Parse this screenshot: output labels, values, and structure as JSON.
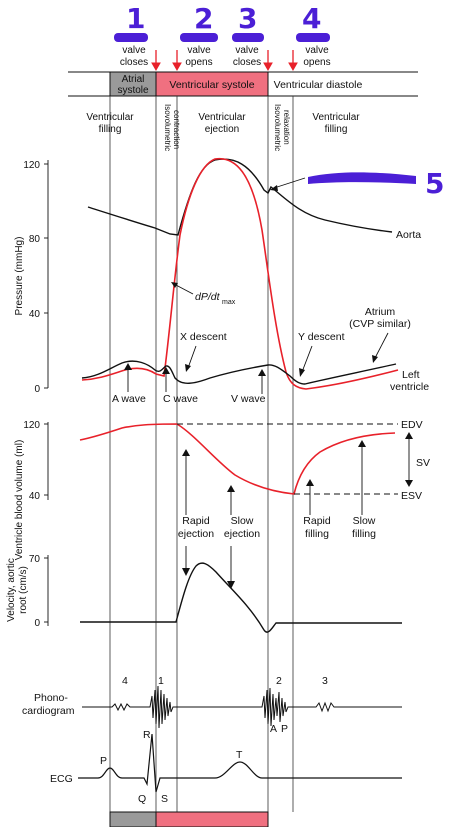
{
  "annotations": {
    "numbers": [
      "1",
      "2",
      "3",
      "4",
      "5"
    ],
    "ink_color": "#4b1fd6"
  },
  "valve_events": [
    {
      "line1": "valve",
      "line2": "closes"
    },
    {
      "line1": "valve",
      "line2": "opens"
    },
    {
      "line1": "valve",
      "line2": "closes"
    },
    {
      "line1": "valve",
      "line2": "opens"
    }
  ],
  "phase_bar": {
    "atrial": [
      "Atrial",
      "systole"
    ],
    "ventricular_systole": "Ventricular systole",
    "ventricular_diastole": "Ventricular diastole",
    "colors": {
      "atrial": "#9a9a9a",
      "systole": "#f07080"
    }
  },
  "sub_phases": {
    "filling_left": [
      "Ventricular",
      "filling"
    ],
    "isovolumetric_contraction": [
      "Isovolumetric",
      "contraction"
    ],
    "ejection": [
      "Ventricular",
      "ejection"
    ],
    "isovolumetric_relaxation": [
      "Isovolumetric",
      "relaxation"
    ],
    "filling_right": [
      "Ventricular",
      "filling"
    ]
  },
  "pressure_panel": {
    "ylabel": "Pressure (mmHg)",
    "ticks": [
      "120",
      "80",
      "40",
      "0"
    ],
    "labels": {
      "aorta": "Aorta",
      "dpdt": "dP/dt",
      "dpdt_sub": "max",
      "x_descent": "X descent",
      "y_descent": "Y descent",
      "atrium": [
        "Atrium",
        "(CVP similar)"
      ],
      "left_ventricle": [
        "Left",
        "ventricle"
      ],
      "a_wave": "A wave",
      "c_wave": "C wave",
      "v_wave": "V wave"
    }
  },
  "volume_panel": {
    "ylabel": "Ventricle blood volume (ml)",
    "ticks": [
      "120",
      "40"
    ],
    "labels": {
      "edv": "EDV",
      "sv": "SV",
      "esv": "ESV",
      "rapid_ejection": [
        "Rapid",
        "ejection"
      ],
      "slow_ejection": [
        "Slow",
        "ejection"
      ],
      "rapid_filling": [
        "Rapid",
        "filling"
      ],
      "slow_filling": [
        "Slow",
        "filling"
      ]
    }
  },
  "velocity_panel": {
    "ylabel": [
      "Velocity, aortic",
      "root (cm/s)"
    ],
    "ticks": [
      "70",
      "0"
    ]
  },
  "phono_panel": {
    "label": [
      "Phono-",
      "cardiogram"
    ],
    "sounds": [
      "4",
      "1",
      "2",
      "3"
    ],
    "a": "A",
    "p": "P"
  },
  "ecg_panel": {
    "label": "ECG",
    "waves": {
      "p": "P",
      "q": "Q",
      "r": "R",
      "s": "S",
      "t": "T"
    }
  },
  "colors": {
    "black_curve": "#111111",
    "red_curve": "#e8212a",
    "marker": "#e8212a"
  }
}
